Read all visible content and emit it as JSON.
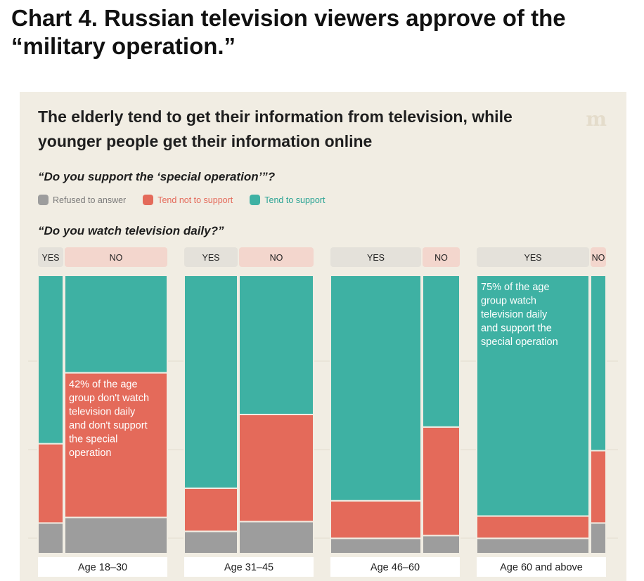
{
  "page_title": "Chart 4. Russian television viewers approve of the “military operation.”",
  "panel": {
    "title": "The elderly tend to get their information from television, while younger people get their information online",
    "logo": "m",
    "question_support": "“Do you support the ‘special operation’”?",
    "question_tv": "“Do you watch television daily?”"
  },
  "colors": {
    "support": "#3eb1a3",
    "not_support": "#e46a5a",
    "refused": "#9d9d9d",
    "panel_bg": "#f1ede3",
    "yes_header": "#e4e1da",
    "no_header": "#f3d6cd"
  },
  "chart_data": {
    "type": "mosaic",
    "title": "The elderly tend to get their information from television, while younger people get their information online",
    "legend": [
      {
        "key": "refused",
        "label": "Refused to answer"
      },
      {
        "key": "not_support",
        "label": "Tend not to support"
      },
      {
        "key": "support",
        "label": "Tend to support"
      }
    ],
    "legend_placement": "top-left",
    "groups": [
      {
        "label": "Age 18–30",
        "segments": [
          {
            "tv": "YES",
            "share": 0.2,
            "refused": 11,
            "not_support": 28.5,
            "support": 60.5
          },
          {
            "tv": "NO",
            "share": 0.8,
            "refused": 13,
            "not_support": 52,
            "support": 35,
            "annotation": "42% of the age group don't watch television daily and don't support the special operation"
          }
        ]
      },
      {
        "label": "Age 31–45",
        "segments": [
          {
            "tv": "YES",
            "share": 0.42,
            "refused": 8,
            "not_support": 15.5,
            "support": 76.5
          },
          {
            "tv": "NO",
            "share": 0.58,
            "refused": 11.5,
            "not_support": 38.5,
            "support": 50
          }
        ]
      },
      {
        "label": "Age 46–60",
        "segments": [
          {
            "tv": "YES",
            "share": 0.71,
            "refused": 5.5,
            "not_support": 13.5,
            "support": 81
          },
          {
            "tv": "NO",
            "share": 0.29,
            "refused": 6.5,
            "not_support": 39,
            "support": 54.5
          }
        ]
      },
      {
        "label": "Age 60 and above",
        "segments": [
          {
            "tv": "YES",
            "share": 0.88,
            "refused": 5.5,
            "not_support": 8,
            "support": 86.5,
            "annotation": "75% of the age group watch television daily and support the special operation"
          },
          {
            "tv": "NO",
            "share": 0.12,
            "refused": 11,
            "not_support": 26,
            "support": 63
          }
        ]
      }
    ]
  }
}
